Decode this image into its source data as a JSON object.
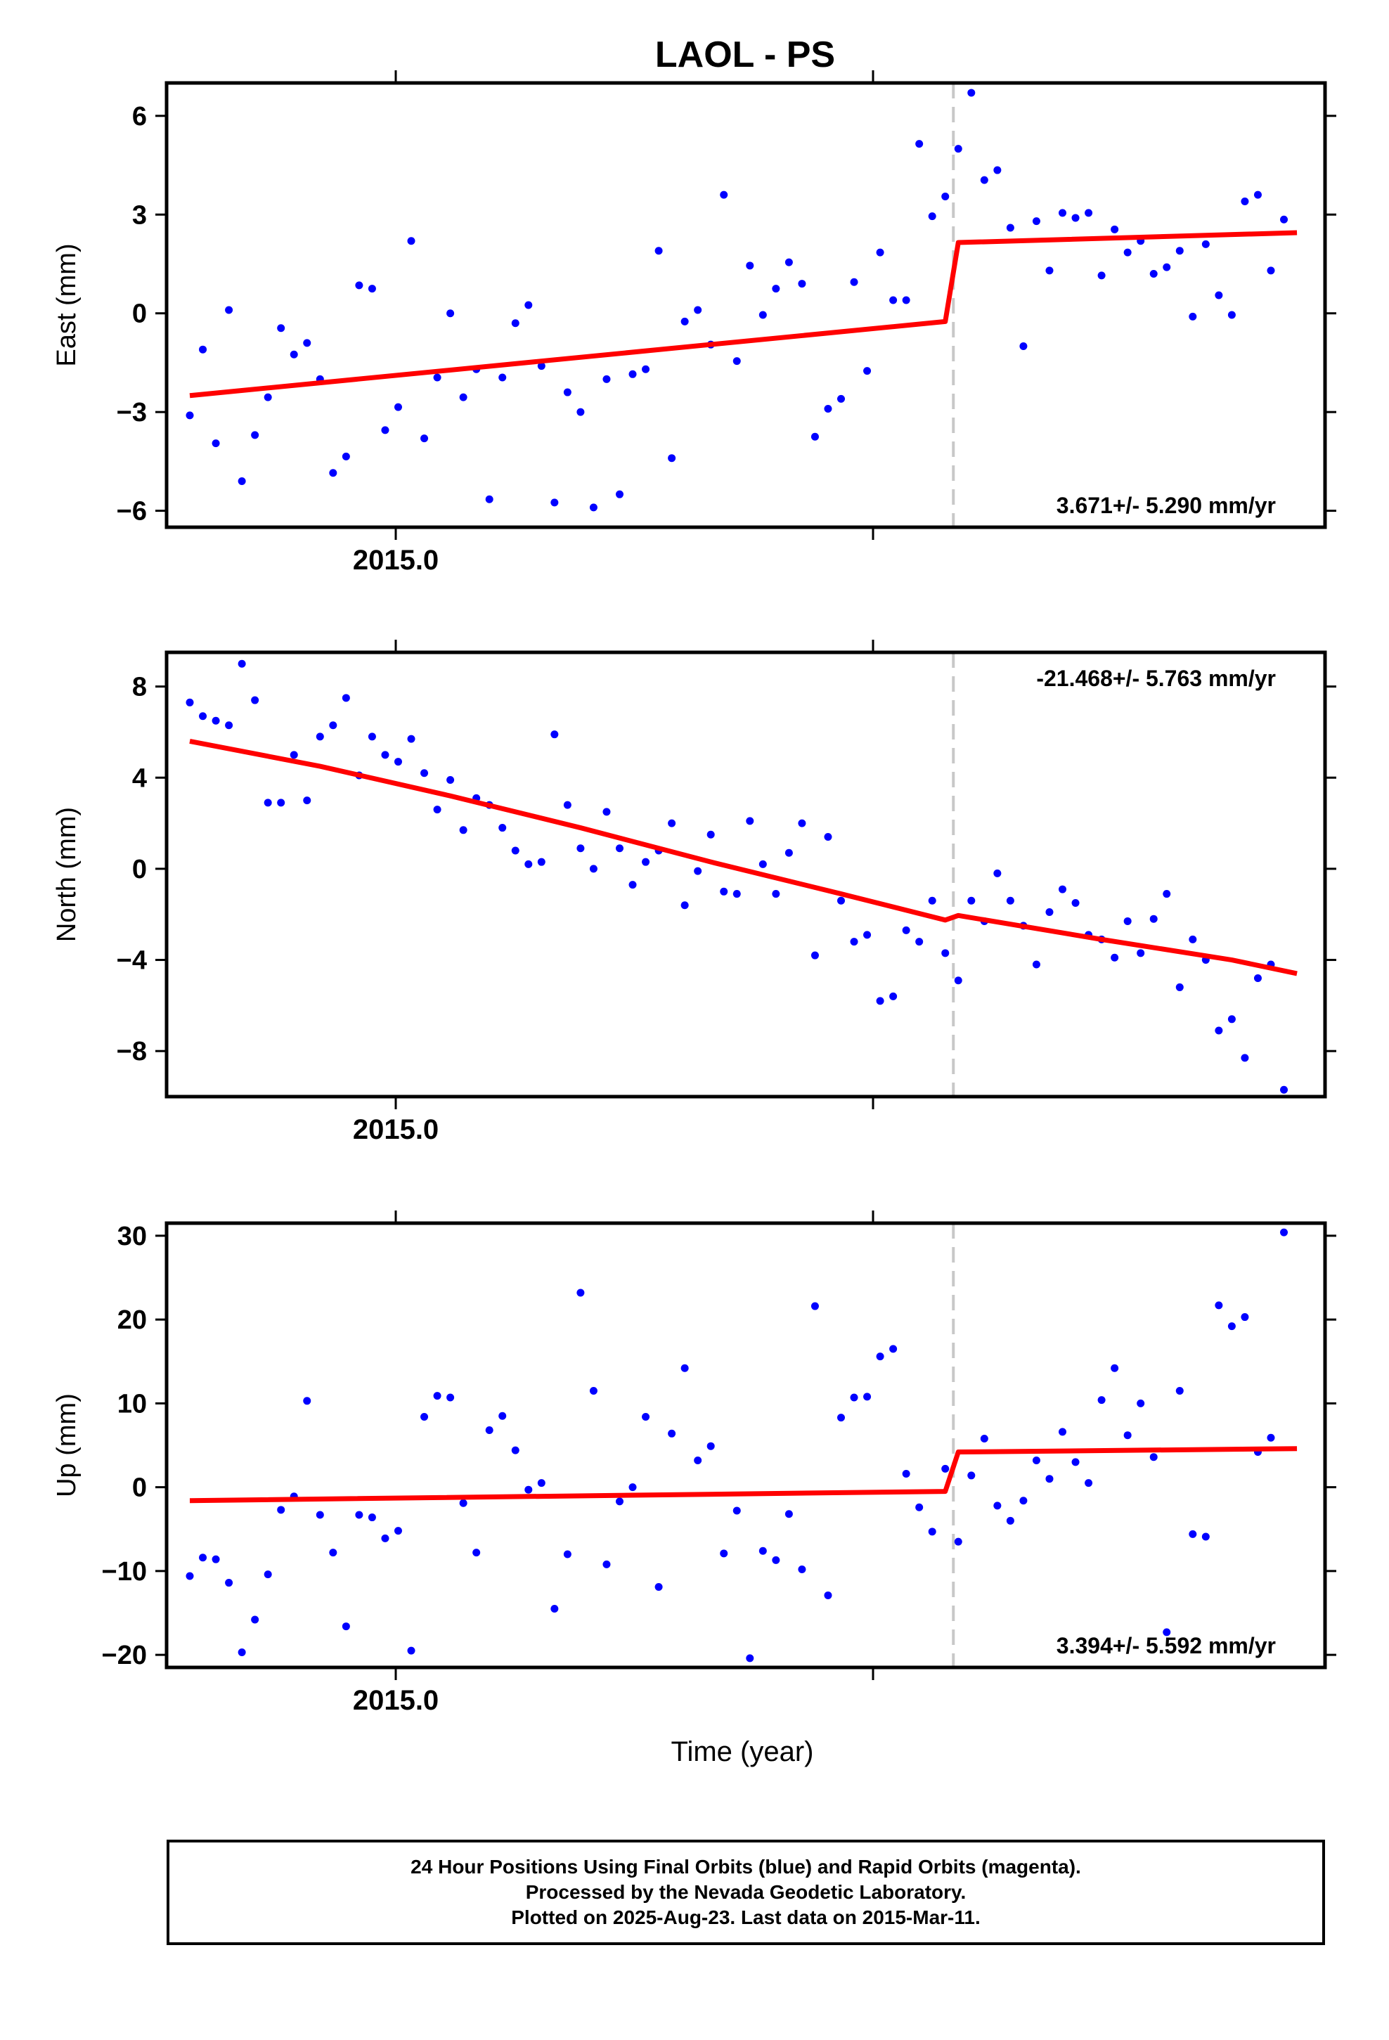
{
  "chart_data": [
    {
      "type": "scatter",
      "title": "LAOL - PS",
      "ylabel": "East (mm)",
      "xtick_label": "2015.0",
      "ylim": [
        -6.5,
        7
      ],
      "yticks": [
        -6,
        -3,
        0,
        3,
        6
      ],
      "rate_text": "3.671+/- 5.290 mm/yr",
      "rate_position": "bottom-right",
      "step_index": 59,
      "series": [
        {
          "name": "",
          "color": "#0000ff",
          "values": [
            -3.1,
            -1.1,
            -3.95,
            0.1,
            -5.1,
            -3.7,
            -2.55,
            -0.45,
            -1.25,
            -0.9,
            -2.0,
            -4.85,
            -4.35,
            0.85,
            0.75,
            -3.55,
            -2.85,
            2.2,
            -3.8,
            -1.95,
            0.0,
            -2.55,
            -1.7,
            -5.65,
            -1.95,
            -0.3,
            0.25,
            -1.6,
            -5.75,
            -2.4,
            -3.0,
            -5.9,
            -2.0,
            -5.5,
            -1.85,
            -1.7,
            1.9,
            -4.4,
            -0.25,
            0.1,
            -0.95,
            3.6,
            -1.45,
            1.45,
            -0.05,
            0.75,
            1.55,
            0.9,
            -3.75,
            -2.9,
            -2.6,
            0.95,
            -1.75,
            1.85,
            0.4,
            0.4,
            5.15,
            2.95,
            3.55,
            5.0,
            6.7,
            4.05,
            4.35,
            2.6,
            -1.0,
            2.8,
            1.3,
            3.05,
            2.9,
            3.05,
            1.15,
            2.55,
            1.85,
            2.2,
            1.2,
            1.4,
            1.9,
            -0.1,
            2.1,
            0.55,
            -0.05,
            3.4,
            3.6,
            1.3,
            2.85
          ]
        }
      ],
      "model": [
        {
          "index": 0,
          "value": -2.5
        },
        {
          "index": 58,
          "value": -0.25
        },
        {
          "index": 59,
          "value": 2.15
        },
        {
          "index": 85,
          "value": 2.45
        }
      ]
    },
    {
      "type": "scatter",
      "title": "",
      "ylabel": "North (mm)",
      "xtick_label": "2015.0",
      "ylim": [
        -10,
        9.5
      ],
      "yticks": [
        -8,
        -4,
        0,
        4,
        8
      ],
      "rate_text": "-21.468+/- 5.763 mm/yr",
      "rate_position": "top-right",
      "step_index": 59,
      "series": [
        {
          "name": "",
          "color": "#0000ff",
          "values": [
            7.3,
            6.7,
            6.5,
            6.3,
            9.0,
            7.4,
            2.9,
            2.9,
            5.0,
            3.0,
            5.8,
            6.3,
            7.5,
            4.1,
            5.8,
            5.0,
            4.7,
            5.7,
            4.2,
            2.6,
            3.9,
            1.7,
            3.1,
            2.8,
            1.8,
            0.8,
            0.2,
            0.3,
            5.9,
            2.8,
            0.9,
            0.0,
            2.5,
            0.9,
            -0.7,
            0.3,
            0.8,
            2.0,
            -1.6,
            -0.1,
            1.5,
            -1.0,
            -1.1,
            2.1,
            0.2,
            -1.1,
            0.7,
            2.0,
            -3.8,
            1.4,
            -1.4,
            -3.2,
            -2.9,
            -5.8,
            -5.6,
            -2.7,
            -3.2,
            -1.4,
            -3.7,
            -4.9,
            -1.4,
            -2.3,
            -0.2,
            -1.4,
            -2.5,
            -4.2,
            -1.9,
            -0.9,
            -1.5,
            -2.9,
            -3.1,
            -3.9,
            -2.3,
            -3.7,
            -2.2,
            -1.1,
            -5.2,
            -3.1,
            -4.0,
            -7.1,
            -6.6,
            -8.3,
            -4.8,
            -4.2,
            -9.7
          ]
        }
      ],
      "model": [
        {
          "index": 0,
          "value": 5.6
        },
        {
          "index": 10,
          "value": 4.5
        },
        {
          "index": 20,
          "value": 3.2
        },
        {
          "index": 30,
          "value": 1.8
        },
        {
          "index": 40,
          "value": 0.3
        },
        {
          "index": 50,
          "value": -1.1
        },
        {
          "index": 58,
          "value": -2.25
        },
        {
          "index": 59,
          "value": -2.05
        },
        {
          "index": 70,
          "value": -3.1
        },
        {
          "index": 80,
          "value": -4.0
        },
        {
          "index": 85,
          "value": -4.6
        }
      ]
    },
    {
      "type": "scatter",
      "title": "",
      "ylabel": "Up (mm)",
      "xtick_label": "2015.0",
      "ylim": [
        -21.5,
        31.5
      ],
      "yticks": [
        -20,
        -10,
        0,
        10,
        20,
        30
      ],
      "rate_text": "3.394+/- 5.592 mm/yr",
      "rate_position": "bottom-right",
      "step_index": 59,
      "series": [
        {
          "name": "",
          "color": "#0000ff",
          "values": [
            -10.6,
            -8.4,
            -8.6,
            -11.4,
            -19.7,
            -15.8,
            -10.4,
            -2.7,
            -1.1,
            10.3,
            -3.3,
            -7.8,
            -16.6,
            -3.3,
            -3.6,
            -6.1,
            -5.2,
            -19.5,
            8.4,
            10.9,
            10.7,
            -1.9,
            -7.8,
            6.8,
            8.5,
            4.4,
            -0.3,
            0.5,
            -14.5,
            -8.0,
            23.2,
            11.5,
            -9.2,
            -1.7,
            0.0,
            8.4,
            -11.9,
            6.4,
            14.2,
            3.2,
            4.9,
            -7.9,
            -2.8,
            -20.4,
            -7.6,
            -8.7,
            -3.2,
            -9.8,
            21.6,
            -12.9,
            8.3,
            10.7,
            10.8,
            15.6,
            16.5,
            1.6,
            -2.4,
            -5.3,
            2.2,
            -6.5,
            1.4,
            5.8,
            -2.2,
            -4.0,
            -1.6,
            3.2,
            1.0,
            6.6,
            3.0,
            0.5,
            10.4,
            14.2,
            6.2,
            10.0,
            3.6,
            -17.3,
            11.5,
            -5.6,
            -5.9,
            21.7,
            19.2,
            20.3,
            4.2,
            5.9,
            30.4
          ]
        }
      ],
      "model": [
        {
          "index": 0,
          "value": -1.6
        },
        {
          "index": 58,
          "value": -0.5
        },
        {
          "index": 59,
          "value": 4.2
        },
        {
          "index": 85,
          "value": 4.6
        }
      ]
    }
  ],
  "xlabel": "Time (year)",
  "footer": {
    "line1": "24 Hour Positions Using Final Orbits (blue) and Rapid Orbits (magenta).",
    "line2": "Processed by the Nevada Geodetic Laboratory.",
    "line3": "Plotted on 2025-Aug-23. Last data on 2015-Mar-11."
  }
}
